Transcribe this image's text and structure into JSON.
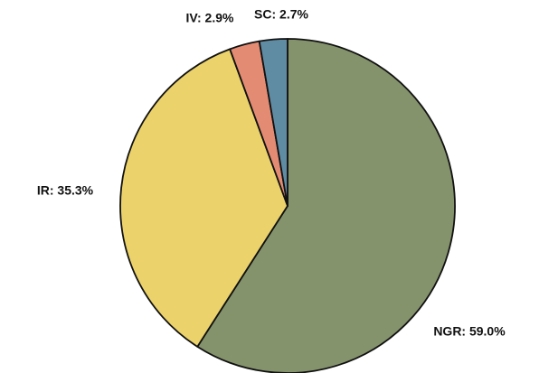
{
  "chart_data": {
    "type": "pie",
    "values": [
      59.0,
      35.3,
      2.9,
      2.7
    ],
    "value_labels": [
      "NGR: 59.0%",
      "IR: 35.3%",
      "IV: 2.9%",
      "SC: 2.7%"
    ],
    "colors": [
      "#84936b",
      "#ebd26a",
      "#e38b73",
      "#5f8ca3"
    ]
  }
}
